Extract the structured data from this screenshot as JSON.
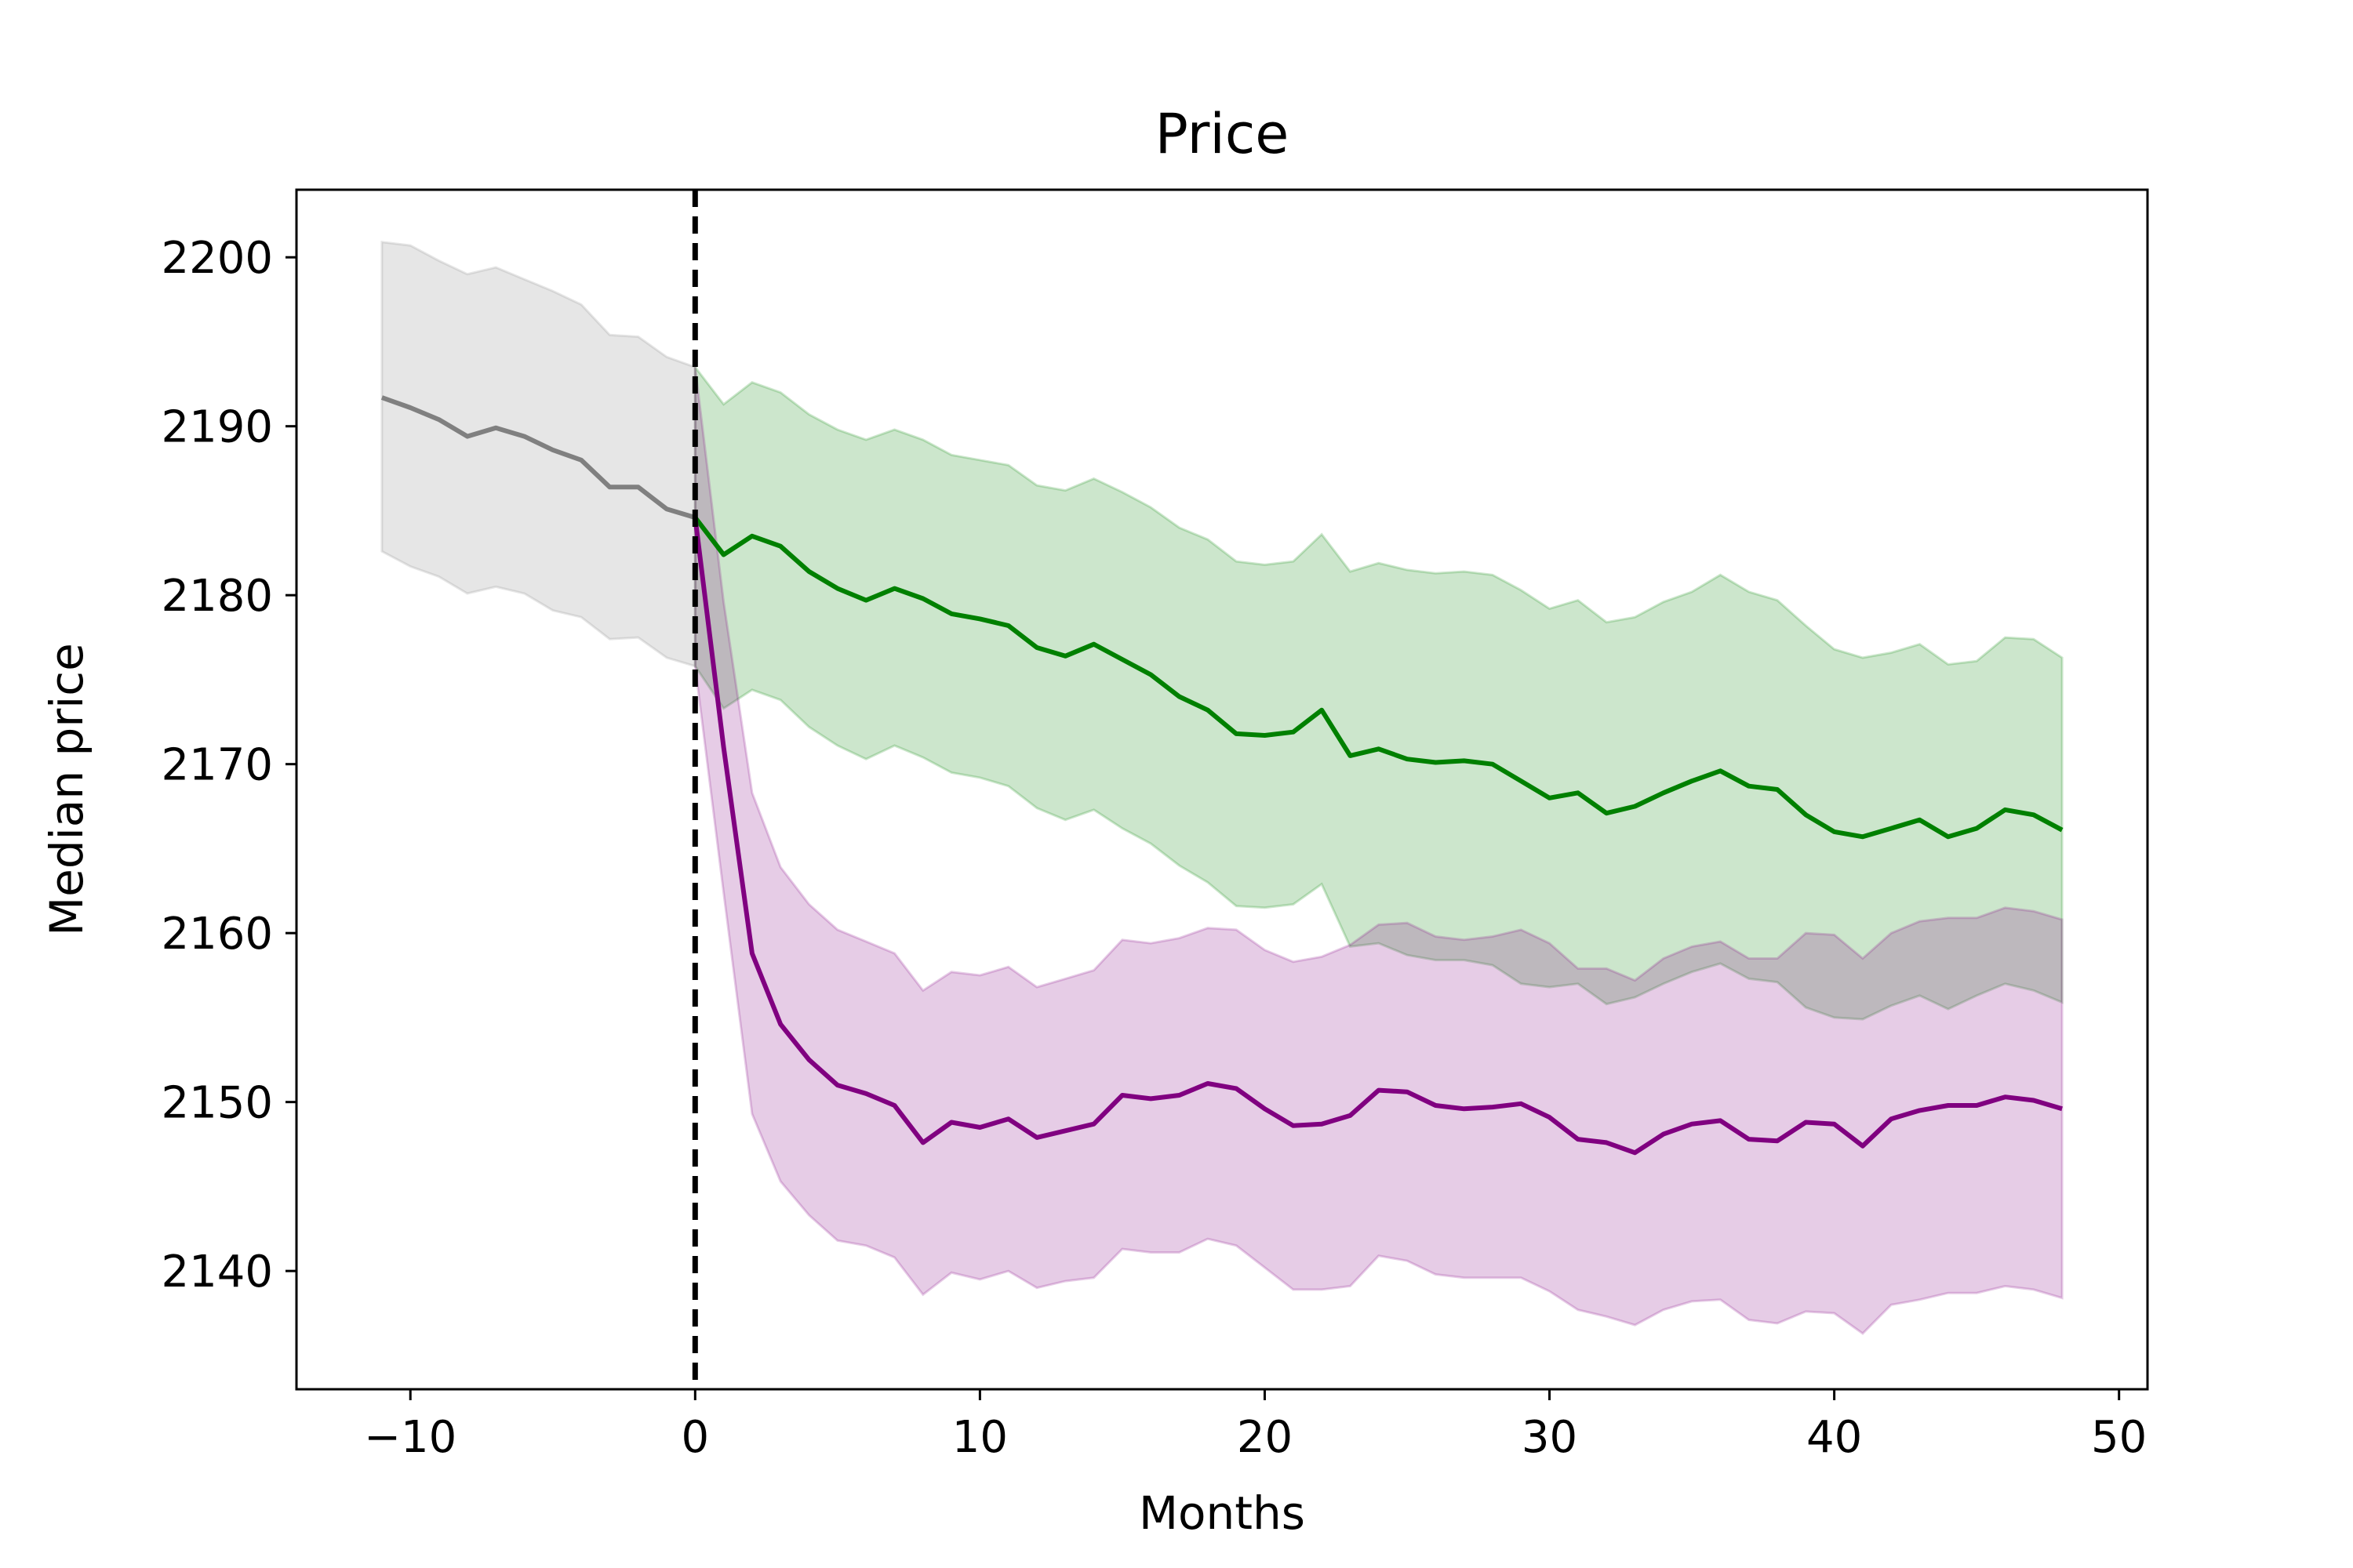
{
  "chart_data": {
    "type": "line",
    "title": "Price",
    "xlabel": "Months",
    "ylabel": "Median price",
    "xlim": [
      -14,
      51
    ],
    "ylim": [
      2133,
      2204
    ],
    "xticks": [
      -10,
      0,
      10,
      20,
      30,
      40,
      50
    ],
    "xtick_labels": [
      "−10",
      "0",
      "10",
      "20",
      "30",
      "40",
      "50"
    ],
    "yticks": [
      2140,
      2150,
      2160,
      2170,
      2180,
      2190,
      2200
    ],
    "ytick_labels": [
      "2140",
      "2150",
      "2160",
      "2170",
      "2180",
      "2190",
      "2200"
    ],
    "grid": false,
    "vline": {
      "x": 0,
      "color": "#000000",
      "style": "dashed"
    },
    "series": [
      {
        "color": "#808080",
        "x": [
          -11,
          -10,
          -9,
          -8,
          -7,
          -6,
          -5,
          -4,
          -3,
          -2,
          -1,
          0
        ],
        "y": [
          2191.7,
          2191.1,
          2190.4,
          2189.4,
          2189.9,
          2189.4,
          2188.6,
          2188.0,
          2186.4,
          2186.4,
          2185.1,
          2184.6
        ],
        "lower": [
          2182.6,
          2181.7,
          2181.1,
          2180.1,
          2180.5,
          2180.1,
          2179.1,
          2178.7,
          2177.4,
          2177.5,
          2176.3,
          2175.8
        ],
        "upper": [
          2200.9,
          2200.7,
          2199.8,
          2199.0,
          2199.4,
          2198.7,
          2198.0,
          2197.2,
          2195.4,
          2195.3,
          2194.1,
          2193.5
        ]
      },
      {
        "color": "#008000",
        "x": [
          0,
          1,
          2,
          3,
          4,
          5,
          6,
          7,
          8,
          9,
          10,
          11,
          12,
          13,
          14,
          15,
          16,
          17,
          18,
          19,
          20,
          21,
          22,
          23,
          24,
          25,
          26,
          27,
          28,
          29,
          30,
          31,
          32,
          33,
          34,
          35,
          36,
          37,
          38,
          39,
          40,
          41,
          42,
          43,
          44,
          45,
          46,
          47,
          48
        ],
        "y": [
          2184.6,
          2182.4,
          2183.5,
          2182.9,
          2181.4,
          2180.4,
          2179.7,
          2180.4,
          2179.8,
          2178.9,
          2178.6,
          2178.2,
          2176.9,
          2176.4,
          2177.1,
          2176.2,
          2175.3,
          2174.0,
          2173.2,
          2171.8,
          2171.7,
          2171.9,
          2173.2,
          2170.5,
          2170.9,
          2170.3,
          2170.1,
          2170.2,
          2170.0,
          2169.0,
          2168.0,
          2168.3,
          2167.1,
          2167.5,
          2168.3,
          2169.0,
          2169.6,
          2168.7,
          2168.5,
          2167.0,
          2166.0,
          2165.7,
          2166.2,
          2166.7,
          2165.7,
          2166.2,
          2167.3,
          2167.0,
          2166.1
        ],
        "lower": [
          2175.8,
          2173.3,
          2174.4,
          2173.8,
          2172.2,
          2171.1,
          2170.3,
          2171.1,
          2170.4,
          2169.5,
          2169.2,
          2168.7,
          2167.4,
          2166.7,
          2167.3,
          2166.2,
          2165.3,
          2164.0,
          2163.0,
          2161.6,
          2161.5,
          2161.7,
          2162.9,
          2159.2,
          2159.4,
          2158.7,
          2158.4,
          2158.4,
          2158.1,
          2157.0,
          2156.8,
          2157.0,
          2155.8,
          2156.2,
          2157.0,
          2157.7,
          2158.2,
          2157.3,
          2157.1,
          2155.6,
          2155.0,
          2154.9,
          2155.7,
          2156.3,
          2155.5,
          2156.3,
          2157.0,
          2156.6,
          2155.9
        ],
        "upper": [
          2193.5,
          2191.3,
          2192.6,
          2192.0,
          2190.7,
          2189.8,
          2189.2,
          2189.8,
          2189.2,
          2188.3,
          2188.0,
          2187.7,
          2186.5,
          2186.2,
          2186.9,
          2186.1,
          2185.2,
          2184.0,
          2183.3,
          2182.0,
          2181.8,
          2182.0,
          2183.6,
          2181.4,
          2181.9,
          2181.5,
          2181.3,
          2181.4,
          2181.2,
          2180.3,
          2179.2,
          2179.7,
          2178.4,
          2178.7,
          2179.6,
          2180.2,
          2181.2,
          2180.2,
          2179.7,
          2178.2,
          2176.8,
          2176.3,
          2176.6,
          2177.1,
          2175.9,
          2176.1,
          2177.5,
          2177.4,
          2176.3
        ]
      },
      {
        "color": "#800080",
        "x": [
          0,
          1,
          2,
          3,
          4,
          5,
          6,
          7,
          8,
          9,
          10,
          11,
          12,
          13,
          14,
          15,
          16,
          17,
          18,
          19,
          20,
          21,
          22,
          23,
          24,
          25,
          26,
          27,
          28,
          29,
          30,
          31,
          32,
          33,
          34,
          35,
          36,
          37,
          38,
          39,
          40,
          41,
          42,
          43,
          44,
          45,
          46,
          47,
          48
        ],
        "y": [
          2184.6,
          2171.0,
          2158.8,
          2154.6,
          2152.5,
          2151.0,
          2150.5,
          2149.8,
          2147.6,
          2148.8,
          2148.5,
          2149.0,
          2147.9,
          2148.3,
          2148.7,
          2150.4,
          2150.2,
          2150.4,
          2151.1,
          2150.8,
          2149.6,
          2148.6,
          2148.7,
          2149.2,
          2150.7,
          2150.6,
          2149.8,
          2149.6,
          2149.7,
          2149.9,
          2149.1,
          2147.8,
          2147.6,
          2147.0,
          2148.1,
          2148.7,
          2148.9,
          2147.8,
          2147.7,
          2148.8,
          2148.7,
          2147.4,
          2149.0,
          2149.5,
          2149.8,
          2149.8,
          2150.3,
          2150.1,
          2149.6
        ],
        "lower": [
          2175.8,
          2162.4,
          2149.3,
          2145.3,
          2143.3,
          2141.8,
          2141.5,
          2140.8,
          2138.6,
          2139.9,
          2139.5,
          2140.0,
          2139.0,
          2139.4,
          2139.6,
          2141.3,
          2141.1,
          2141.1,
          2141.9,
          2141.5,
          2140.2,
          2138.9,
          2138.9,
          2139.1,
          2140.9,
          2140.6,
          2139.8,
          2139.6,
          2139.6,
          2139.6,
          2138.8,
          2137.7,
          2137.3,
          2136.8,
          2137.7,
          2138.2,
          2138.3,
          2137.1,
          2136.9,
          2137.6,
          2137.5,
          2136.3,
          2138.0,
          2138.3,
          2138.7,
          2138.7,
          2139.1,
          2138.9,
          2138.4
        ],
        "upper": [
          2193.5,
          2179.6,
          2168.3,
          2163.9,
          2161.7,
          2160.2,
          2159.5,
          2158.8,
          2156.6,
          2157.7,
          2157.5,
          2158.0,
          2156.8,
          2157.3,
          2157.8,
          2159.6,
          2159.4,
          2159.7,
          2160.3,
          2160.2,
          2159.0,
          2158.3,
          2158.6,
          2159.3,
          2160.5,
          2160.6,
          2159.8,
          2159.6,
          2159.8,
          2160.2,
          2159.4,
          2157.9,
          2157.9,
          2157.2,
          2158.5,
          2159.2,
          2159.5,
          2158.5,
          2158.5,
          2160.0,
          2159.9,
          2158.5,
          2160.0,
          2160.7,
          2160.9,
          2160.9,
          2161.5,
          2161.3,
          2160.8
        ]
      }
    ]
  },
  "colors": {
    "gray_fill": "#808080",
    "green_fill": "#008000",
    "purple_fill": "#800080"
  }
}
